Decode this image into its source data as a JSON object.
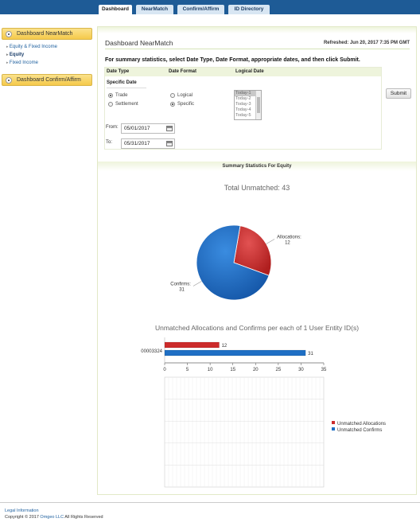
{
  "nav": {
    "tabs": [
      {
        "label": "Dashboard",
        "active": true
      },
      {
        "label": "NearMatch",
        "active": false
      },
      {
        "label": "Confirm/Affirm",
        "active": false
      },
      {
        "label": "ID Directory",
        "active": false
      }
    ]
  },
  "sidebar": {
    "sections": [
      {
        "label": "Dashboard NearMatch",
        "icon": "radio-bullet-icon"
      },
      {
        "label": "Dashboard Confirm/Affirm",
        "icon": "radio-bullet-icon"
      }
    ],
    "links": [
      {
        "label": "Equity & Fixed Income",
        "current": false
      },
      {
        "label": "Equity",
        "current": true
      },
      {
        "label": "Fixed Income",
        "current": false
      }
    ]
  },
  "dashboard": {
    "title": "Dashboard NearMatch",
    "refreshed": "Refreshed: Jun 20, 2017 7:35 PM GMT",
    "instructions": "For summary statistics, select Date Type, Date Format, appropriate dates, and then click Submit."
  },
  "form": {
    "col_date_type": "Date Type",
    "col_date_format": "Date Format",
    "col_logical_date": "Logical Date",
    "specific_date_label": "Specific Date",
    "date_type_options": [
      {
        "label": "Trade",
        "selected": true
      },
      {
        "label": "Settlement",
        "selected": false
      }
    ],
    "date_format_options": [
      {
        "label": "Logical",
        "selected": false
      },
      {
        "label": "Specific",
        "selected": true
      }
    ],
    "logical_dates": [
      "Today-1",
      "Today-2",
      "Today-3",
      "Today-4",
      "Today-5"
    ],
    "from_label": "From:",
    "from_value": "05/01/2017",
    "to_label": "To:",
    "to_value": "05/31/2017",
    "submit_label": "Submit"
  },
  "stats": {
    "band_title": "Summary Statistics For Equity",
    "pie_title": "Total Unmatched: 43",
    "bar_title": "Unmatched Allocations and Confirms per each of 1 User Entity ID(s)",
    "colors": {
      "allocations": "#cc2b2b",
      "confirms": "#1f6fc4"
    }
  },
  "chart_data": [
    {
      "type": "pie",
      "title": "Total Unmatched: 43",
      "slices": [
        {
          "label": "Allocations:",
          "value": 12
        },
        {
          "label": "Confirms:",
          "value": 31
        }
      ]
    },
    {
      "type": "bar",
      "orientation": "horizontal",
      "title": "Unmatched Allocations and Confirms per each of 1 User Entity ID(s)",
      "categories": [
        "00003324"
      ],
      "series": [
        {
          "name": "Unmatched Allocations",
          "values": [
            12
          ]
        },
        {
          "name": "Unmatched Confirms",
          "values": [
            31
          ]
        }
      ],
      "xlim": [
        0,
        35
      ],
      "xticks": [
        "0",
        "5",
        "10",
        "15",
        "20",
        "25",
        "30",
        "35"
      ],
      "grid": true,
      "legend": "right"
    }
  ],
  "footer": {
    "legal": "Legal Information",
    "copyright_prefix": "Copyright © 2017 ",
    "company": "Omgeo LLC",
    "copyright_suffix": " All Rights Reserved"
  }
}
